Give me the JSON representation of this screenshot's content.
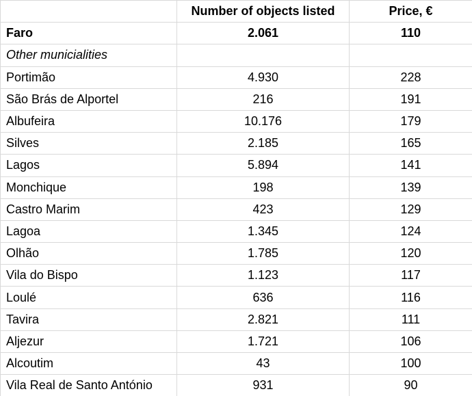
{
  "chart_data": {
    "type": "table",
    "columns": [
      "",
      "Number of objects listed",
      "Price, €"
    ],
    "rows": [
      {
        "name": "Faro",
        "objects": "2.061",
        "price": "110",
        "style": "bold"
      },
      {
        "name": "Other municialities",
        "objects": "",
        "price": "",
        "style": "italic"
      },
      {
        "name": "Portimão",
        "objects": "4.930",
        "price": "228",
        "style": "regular"
      },
      {
        "name": "São Brás de Alportel",
        "objects": "216",
        "price": "191",
        "style": "regular"
      },
      {
        "name": "Albufeira",
        "objects": "10.176",
        "price": "179",
        "style": "regular"
      },
      {
        "name": "Silves",
        "objects": "2.185",
        "price": "165",
        "style": "regular"
      },
      {
        "name": "Lagos",
        "objects": "5.894",
        "price": "141",
        "style": "regular"
      },
      {
        "name": "Monchique",
        "objects": "198",
        "price": "139",
        "style": "regular"
      },
      {
        "name": "Castro Marim",
        "objects": "423",
        "price": "129",
        "style": "regular"
      },
      {
        "name": "Lagoa",
        "objects": "1.345",
        "price": "124",
        "style": "regular"
      },
      {
        "name": "Olhão",
        "objects": "1.785",
        "price": "120",
        "style": "regular"
      },
      {
        "name": "Vila do Bispo",
        "objects": "1.123",
        "price": "117",
        "style": "regular"
      },
      {
        "name": "Loulé",
        "objects": "636",
        "price": "116",
        "style": "regular"
      },
      {
        "name": "Tavira",
        "objects": "2.821",
        "price": "111",
        "style": "regular"
      },
      {
        "name": "Aljezur",
        "objects": "1.721",
        "price": "106",
        "style": "regular"
      },
      {
        "name": "Alcoutim",
        "objects": "43",
        "price": "100",
        "style": "regular"
      },
      {
        "name": "Vila Real de Santo António",
        "objects": "931",
        "price": "90",
        "style": "regular"
      }
    ]
  },
  "colors": {
    "grid_border": "#d9d9d9",
    "text": "#000000",
    "background": "#ffffff"
  }
}
